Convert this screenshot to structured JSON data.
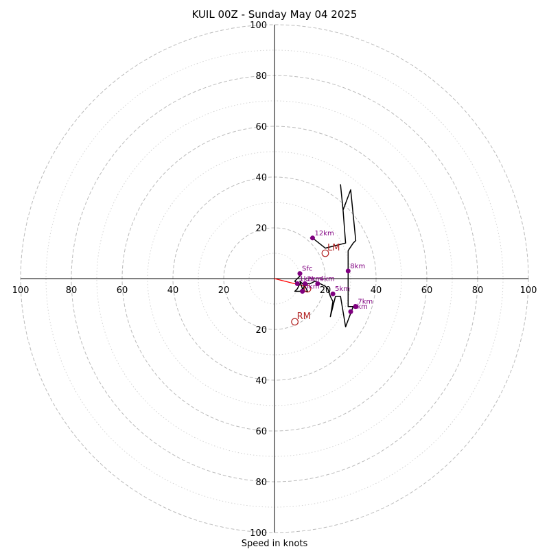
{
  "chart_data": {
    "type": "line",
    "title": "KUIL 00Z - Sunday May 04 2025",
    "xlabel": "Speed in knots",
    "ylabel": "",
    "xlim": [
      -100,
      100
    ],
    "ylim": [
      -100,
      100
    ],
    "units": "knots",
    "rings_major": [
      20,
      40,
      60,
      80,
      100
    ],
    "rings_minor": [
      10,
      30,
      50,
      70,
      90
    ],
    "tick_labels": {
      "left": [
        "20",
        "40",
        "60",
        "80",
        "100"
      ],
      "right": [
        "20",
        "40",
        "60",
        "80",
        "100"
      ],
      "top": [
        "20",
        "40",
        "60",
        "80",
        "100"
      ],
      "bottom": [
        "20",
        "40",
        "60",
        "80",
        "100"
      ]
    },
    "grid": true,
    "series": [
      {
        "name": "",
        "color": "#000000",
        "points": [
          {
            "u": 10,
            "v": 1
          },
          {
            "u": 9,
            "v": 0
          },
          {
            "u": 8,
            "v": -1
          },
          {
            "u": 9,
            "v": -2
          },
          {
            "u": 10,
            "v": -2
          },
          {
            "u": 9,
            "v": -4
          },
          {
            "u": 8,
            "v": -5
          },
          {
            "u": 10,
            "v": -5
          },
          {
            "u": 11,
            "v": -4
          },
          {
            "u": 10,
            "v": -1
          },
          {
            "u": 12,
            "v": -3
          },
          {
            "u": 13,
            "v": -5
          },
          {
            "u": 11,
            "v": -5
          },
          {
            "u": 12,
            "v": -2
          },
          {
            "u": 14,
            "v": -2
          },
          {
            "u": 16,
            "v": -1
          },
          {
            "u": 18,
            "v": -2
          },
          {
            "u": 20,
            "v": -3
          },
          {
            "u": 21,
            "v": -4
          },
          {
            "u": 22,
            "v": -7
          },
          {
            "u": 23,
            "v": -9
          },
          {
            "u": 22,
            "v": -15
          },
          {
            "u": 24,
            "v": -7
          },
          {
            "u": 26,
            "v": -7
          },
          {
            "u": 28,
            "v": -19
          },
          {
            "u": 31,
            "v": -11
          },
          {
            "u": 29,
            "v": -11
          },
          {
            "u": 29,
            "v": -8
          },
          {
            "u": 29,
            "v": -3
          },
          {
            "u": 29,
            "v": 3
          },
          {
            "u": 29,
            "v": 7
          },
          {
            "u": 29,
            "v": 11
          },
          {
            "u": 31,
            "v": 14
          },
          {
            "u": 32,
            "v": 15
          },
          {
            "u": 31,
            "v": 25
          },
          {
            "u": 30,
            "v": 35
          },
          {
            "u": 27,
            "v": 27
          },
          {
            "u": 26,
            "v": 37
          },
          {
            "u": 27,
            "v": 27
          },
          {
            "u": 28,
            "v": 14
          },
          {
            "u": 24,
            "v": 13
          },
          {
            "u": 20,
            "v": 12
          },
          {
            "u": 15,
            "v": 16
          },
          {
            "u": 14,
            "v": 16
          }
        ]
      }
    ],
    "storm_motion_vector": {
      "color": "#ff0000",
      "from": {
        "u": 0,
        "v": 0
      },
      "to": {
        "u": 12,
        "v": -3
      }
    },
    "height_markers": [
      {
        "label": "Sfc",
        "u": 10,
        "v": 2
      },
      {
        "label": "1km",
        "u": 9,
        "v": -2
      },
      {
        "label": "2km",
        "u": 12,
        "v": -2
      },
      {
        "label": "3km",
        "u": 11,
        "v": -5
      },
      {
        "label": "4km",
        "u": 17,
        "v": -2
      },
      {
        "label": "5km",
        "u": 23,
        "v": -6
      },
      {
        "label": "6km",
        "u": 30,
        "v": -13
      },
      {
        "label": "7km",
        "u": 32,
        "v": -11
      },
      {
        "label": "8km",
        "u": 29,
        "v": 3
      },
      {
        "label": "12km",
        "u": 15,
        "v": 16
      }
    ],
    "storm_motions": [
      {
        "label": "LM",
        "u": 20,
        "v": 10
      },
      {
        "label": "RM",
        "u": 8,
        "v": -17
      },
      {
        "label": "",
        "u": 13,
        "v": -4
      }
    ],
    "colors": {
      "hodograph_line": "#000000",
      "height_marker": "#800080",
      "storm_motion": "#b22222",
      "vector": "#ff0000",
      "major_grid": "#bbbbbb",
      "minor_grid": "#d3d3d3"
    }
  }
}
